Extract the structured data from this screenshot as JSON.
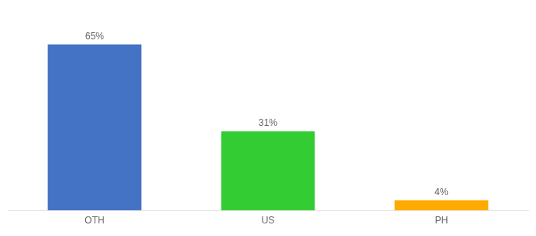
{
  "chart_data": {
    "type": "bar",
    "categories": [
      "OTH",
      "US",
      "PH"
    ],
    "values": [
      65,
      31,
      4
    ],
    "value_labels": [
      "65%",
      "31%",
      "4%"
    ],
    "colors": [
      "#4472c4",
      "#33cc33",
      "#ffaa00"
    ],
    "ylim": [
      0,
      75
    ],
    "grid": false,
    "data_labels": true,
    "tick_labels": "x"
  }
}
